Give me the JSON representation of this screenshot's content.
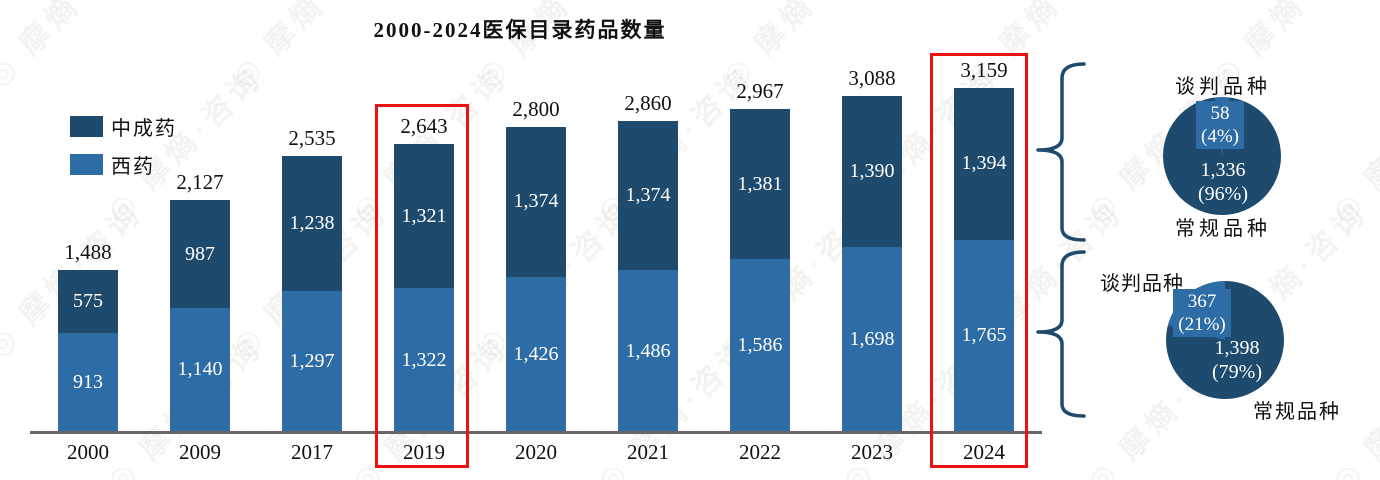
{
  "title": "2000-2024医保目录药品数量",
  "colors": {
    "dark_blue": "#1d4a6d",
    "light_blue": "#2d6ca4",
    "highlight_red": "#ee1111",
    "axis_gray": "#666666"
  },
  "legend": {
    "items": [
      {
        "label": "中成药",
        "color_key": "dark_blue"
      },
      {
        "label": "西药",
        "color_key": "light_blue"
      }
    ]
  },
  "watermark": {
    "logo": "◎",
    "text": "摩熵·咨询"
  },
  "chart_data": [
    {
      "type": "bar",
      "subtype": "stacked",
      "title": "2000-2024医保目录药品数量",
      "categories": [
        "2000",
        "2009",
        "2017",
        "2019",
        "2020",
        "2021",
        "2022",
        "2023",
        "2024"
      ],
      "series": [
        {
          "name": "西药",
          "values": [
            913,
            1140,
            1297,
            1322,
            1426,
            1486,
            1586,
            1698,
            1765
          ]
        },
        {
          "name": "中成药",
          "values": [
            575,
            987,
            1238,
            1321,
            1374,
            1374,
            1381,
            1390,
            1394
          ]
        }
      ],
      "totals": [
        1488,
        2127,
        2535,
        2643,
        2800,
        2860,
        2967,
        3088,
        3159
      ],
      "highlighted_categories": [
        "2019",
        "2024"
      ],
      "xlabel": "",
      "ylabel": "",
      "ylim": [
        0,
        3159
      ],
      "grid": false,
      "legend_position": "upper-left"
    },
    {
      "type": "pie",
      "labels": [
        "谈判品种",
        "常规品种"
      ],
      "values": [
        58,
        1336
      ],
      "pcts": [
        4,
        96
      ],
      "linked_segment": "中成药 2024"
    },
    {
      "type": "pie",
      "labels": [
        "谈判品种",
        "常规品种"
      ],
      "values": [
        367,
        1398
      ],
      "pcts": [
        21,
        79
      ],
      "linked_segment": "西药 2024"
    }
  ],
  "pies_display": [
    {
      "negotiated_label": "谈判品种",
      "regular_label": "常规品种",
      "negotiated_value": "58",
      "negotiated_pct": "(4%)",
      "regular_value": "1,336",
      "regular_pct": "(96%)"
    },
    {
      "negotiated_label": "谈判品种",
      "regular_label": "常规品种",
      "negotiated_value": "367",
      "negotiated_pct": "(21%)",
      "regular_value": "1,398",
      "regular_pct": "(79%)"
    }
  ]
}
